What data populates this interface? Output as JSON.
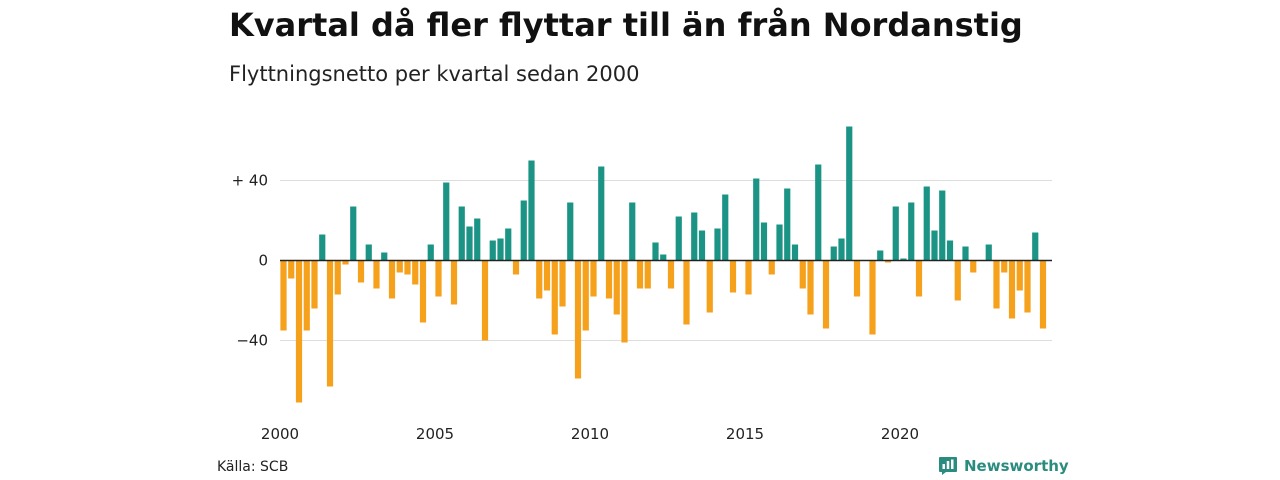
{
  "header": {
    "title": "Kvartal då fler flyttar till än från Nordanstig",
    "subtitle": "Flyttningsnetto per kvartal sedan 2000"
  },
  "footer": {
    "source": "Källa: SCB",
    "brand": "Newsworthy",
    "brand_icon": "bar-chart-logo-icon"
  },
  "colors": {
    "positive": "#1b9486",
    "negative": "#f5a11c",
    "grid": "#dddddd",
    "axis": "#222222",
    "brand": "#2a8c7f"
  },
  "chart_data": {
    "type": "bar",
    "title": "Kvartal då fler flyttar till än från Nordanstig",
    "subtitle": "Flyttningsnetto per kvartal sedan 2000",
    "xlabel": "",
    "ylabel": "",
    "x_start": "2000 Q1",
    "x_tick_labels": [
      "2000",
      "2005",
      "2010",
      "2015",
      "2020"
    ],
    "y_ticks": [
      40,
      0,
      -40
    ],
    "y_tick_labels": [
      "+ 40",
      "0",
      "−40"
    ],
    "ylim": [
      -72,
      68
    ],
    "grid": true,
    "legend": "none",
    "quarters": [
      "2000 Q1",
      "2000 Q2",
      "2000 Q3",
      "2000 Q4",
      "2001 Q1",
      "2001 Q2",
      "2001 Q3",
      "2001 Q4",
      "2002 Q1",
      "2002 Q2",
      "2002 Q3",
      "2002 Q4",
      "2003 Q1",
      "2003 Q2",
      "2003 Q3",
      "2003 Q4",
      "2004 Q1",
      "2004 Q2",
      "2004 Q3",
      "2004 Q4",
      "2005 Q1",
      "2005 Q2",
      "2005 Q3",
      "2005 Q4",
      "2006 Q1",
      "2006 Q2",
      "2006 Q3",
      "2006 Q4",
      "2007 Q1",
      "2007 Q2",
      "2007 Q3",
      "2007 Q4",
      "2008 Q1",
      "2008 Q2",
      "2008 Q3",
      "2008 Q4",
      "2009 Q1",
      "2009 Q2",
      "2009 Q3",
      "2009 Q4",
      "2010 Q1",
      "2010 Q2",
      "2010 Q3",
      "2010 Q4",
      "2011 Q1",
      "2011 Q2",
      "2011 Q3",
      "2011 Q4",
      "2012 Q1",
      "2012 Q2",
      "2012 Q3",
      "2012 Q4",
      "2013 Q1",
      "2013 Q2",
      "2013 Q3",
      "2013 Q4",
      "2014 Q1",
      "2014 Q2",
      "2014 Q3",
      "2014 Q4",
      "2015 Q1",
      "2015 Q2",
      "2015 Q3",
      "2015 Q4",
      "2016 Q1",
      "2016 Q2",
      "2016 Q3",
      "2016 Q4",
      "2017 Q1",
      "2017 Q2",
      "2017 Q3",
      "2017 Q4",
      "2018 Q1",
      "2018 Q2",
      "2018 Q3",
      "2018 Q4",
      "2019 Q1",
      "2019 Q2",
      "2019 Q3",
      "2019 Q4",
      "2020 Q1",
      "2020 Q2",
      "2020 Q3",
      "2020 Q4",
      "2021 Q1",
      "2021 Q2",
      "2021 Q3",
      "2021 Q4",
      "2022 Q1",
      "2022 Q2",
      "2022 Q3",
      "2022 Q4",
      "2023 Q1",
      "2023 Q2",
      "2023 Q3",
      "2023 Q4",
      "2024 Q1",
      "2024 Q2",
      "2024 Q3",
      "2024 Q4"
    ],
    "values": [
      -35,
      -9,
      -71,
      -35,
      -24,
      13,
      -63,
      -17,
      -2,
      27,
      -11,
      8,
      -14,
      4,
      -19,
      -6,
      -7,
      -12,
      -31,
      8,
      -18,
      39,
      -22,
      27,
      17,
      21,
      -40,
      10,
      11,
      16,
      -7,
      30,
      50,
      -19,
      -15,
      -37,
      -23,
      29,
      -59,
      -35,
      -18,
      47,
      -19,
      -27,
      -41,
      29,
      -14,
      -14,
      9,
      3,
      -14,
      22,
      -32,
      24,
      15,
      -26,
      16,
      33,
      -16,
      0,
      -17,
      41,
      19,
      -7,
      18,
      36,
      8,
      -14,
      -27,
      48,
      -34,
      7,
      11,
      67,
      -18,
      0,
      -37,
      5,
      -1,
      27,
      1,
      29,
      -18,
      37,
      15,
      35,
      10,
      -20,
      7,
      -6,
      0,
      8,
      -24,
      -6,
      -29,
      -15,
      -26,
      14,
      -34,
      0
    ]
  }
}
